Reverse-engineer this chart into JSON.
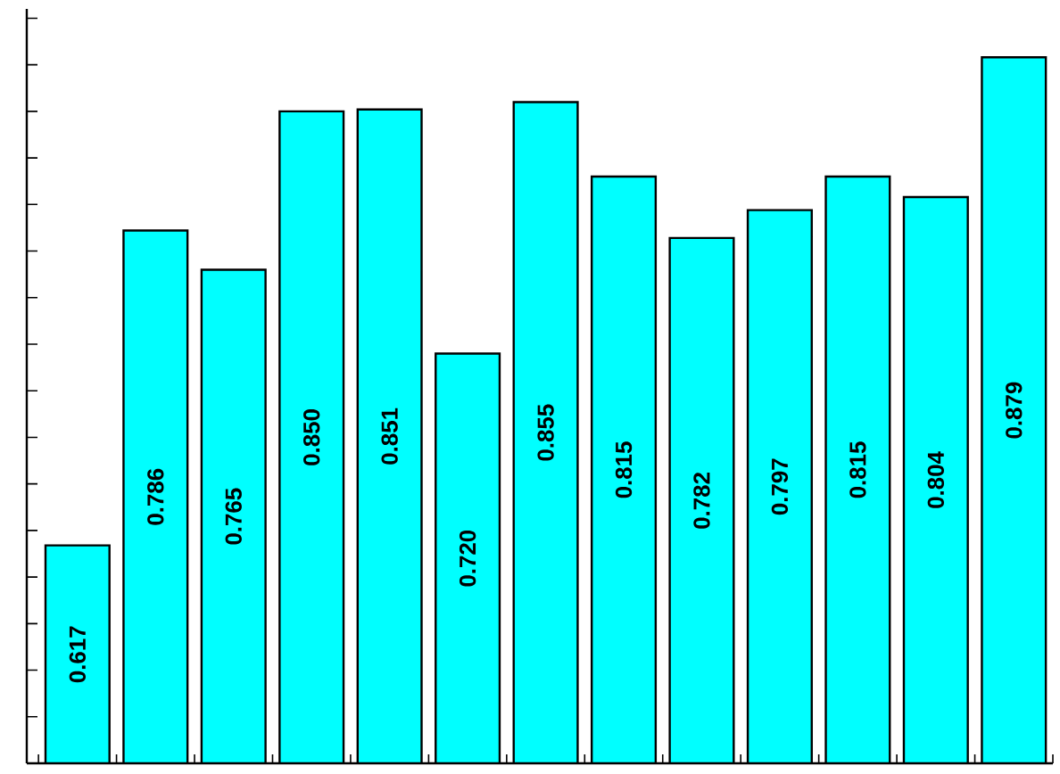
{
  "chart_data": {
    "type": "bar",
    "categories": [
      null,
      null,
      null,
      null,
      null,
      null,
      null,
      null,
      null,
      null,
      null,
      null,
      null
    ],
    "values": [
      0.617,
      0.786,
      0.765,
      0.85,
      0.851,
      0.72,
      0.855,
      0.815,
      0.782,
      0.797,
      0.815,
      0.804,
      0.879
    ],
    "value_labels": [
      "0.617",
      "0.786",
      "0.765",
      "0.850",
      "0.851",
      "0.720",
      "0.855",
      "0.815",
      "0.782",
      "0.797",
      "0.815",
      "0.804",
      "0.879"
    ],
    "color": "#00ffff",
    "ylim": [
      0.5,
      0.905
    ],
    "yticks": [
      {
        "value": 0.5,
        "label": null
      },
      {
        "value": 0.525,
        "label": null
      },
      {
        "value": 0.55,
        "label": null
      },
      {
        "value": 0.575,
        "label": null
      },
      {
        "value": 0.6,
        "label": null
      },
      {
        "value": 0.625,
        "label": null
      },
      {
        "value": 0.65,
        "label": null
      },
      {
        "value": 0.675,
        "label": null
      },
      {
        "value": 0.7,
        "label": null
      },
      {
        "value": 0.725,
        "label": null
      },
      {
        "value": 0.75,
        "label": null
      },
      {
        "value": 0.775,
        "label": null
      },
      {
        "value": 0.8,
        "label": null
      },
      {
        "value": 0.825,
        "label": null
      },
      {
        "value": 0.85,
        "label": null
      },
      {
        "value": 0.875,
        "label": null
      },
      {
        "value": 0.9,
        "label": null
      }
    ],
    "data_labels": false
  }
}
